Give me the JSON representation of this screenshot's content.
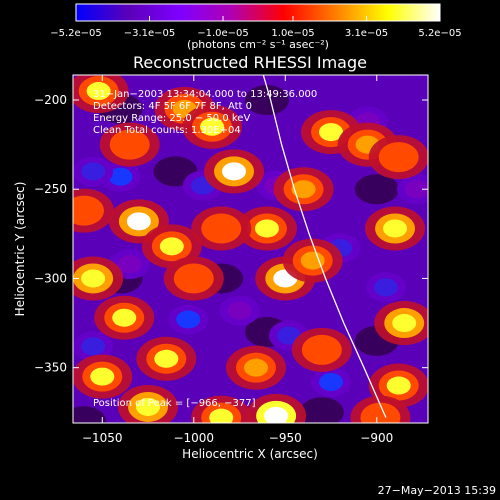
{
  "chart_data": {
    "type": "heatmap",
    "title": "Reconstructed RHESSI Image",
    "xlabel": "Heliocentric X (arcsec)",
    "ylabel": "Heliocentric Y (arcsec)",
    "xlim": [
      -1066,
      -872
    ],
    "ylim": [
      -381,
      -186
    ],
    "x_ticks": [
      -1050,
      -1000,
      -950,
      -900
    ],
    "x_tick_labels": [
      "−1050",
      "−1000",
      "−950",
      "−900"
    ],
    "y_ticks": [
      -350,
      -300,
      -250,
      -200
    ],
    "y_tick_labels": [
      "−350",
      "−300",
      "−250",
      "−200"
    ],
    "colorbar": {
      "range": [
        -5.2e-05,
        5.2e-05
      ],
      "tick_values": [
        -5.2e-05,
        -3.1e-05,
        -1e-05,
        1e-05,
        3.1e-05,
        5.2e-05
      ],
      "tick_labels": [
        "−5.2e−05",
        "−3.1e−05",
        "−1.0e−05",
        "1.0e−05",
        "3.1e−05",
        "5.2e−05"
      ],
      "unit_label": "(photons cm⁻² s⁻¹ asec⁻²)",
      "colors": [
        "#0000ff",
        "#5a00b8",
        "#7f00ff",
        "#b000b0",
        "#ff0000",
        "#ff7f00",
        "#ffff00",
        "#ffffff"
      ]
    },
    "annotations": [
      "31−Jan−2003 13:34:04.000 to 13:49:36.000",
      "Detectors: 4F 5F 6F 7F 8F, Att 0",
      "Energy Range: 25.0 − 50.0 keV",
      "Clean     Total counts: 1.30E+04"
    ],
    "peak_label": "Position of Peak = [−966, −377]",
    "peak": {
      "x": -966,
      "y": -377
    },
    "limb_points": [
      [
        -962,
        -186
      ],
      [
        -958,
        -200
      ],
      [
        -952,
        -225
      ],
      [
        -945,
        -250
      ],
      [
        -937,
        -275
      ],
      [
        -928,
        -300
      ],
      [
        -918,
        -325
      ],
      [
        -907,
        -350
      ],
      [
        -895,
        -378
      ]
    ],
    "hot_spots": [
      {
        "x": -1052,
        "y": -195,
        "v": 0.85
      },
      {
        "x": -1005,
        "y": -205,
        "v": 0.75
      },
      {
        "x": -990,
        "y": -215,
        "v": 0.8
      },
      {
        "x": -1035,
        "y": -225,
        "v": 0.55
      },
      {
        "x": -978,
        "y": -240,
        "v": 0.95
      },
      {
        "x": -925,
        "y": -218,
        "v": 0.8
      },
      {
        "x": -905,
        "y": -225,
        "v": 0.75
      },
      {
        "x": -888,
        "y": -232,
        "v": 0.55
      },
      {
        "x": -890,
        "y": -272,
        "v": 0.9
      },
      {
        "x": -940,
        "y": -250,
        "v": 0.7
      },
      {
        "x": -1060,
        "y": -262,
        "v": 0.6
      },
      {
        "x": -1030,
        "y": -268,
        "v": 0.95
      },
      {
        "x": -1012,
        "y": -282,
        "v": 0.8
      },
      {
        "x": -960,
        "y": -272,
        "v": 0.85
      },
      {
        "x": -985,
        "y": -272,
        "v": 0.55
      },
      {
        "x": -1055,
        "y": -300,
        "v": 0.9
      },
      {
        "x": -1038,
        "y": -322,
        "v": 0.85
      },
      {
        "x": -1000,
        "y": -300,
        "v": 0.55
      },
      {
        "x": -950,
        "y": -300,
        "v": 0.95
      },
      {
        "x": -935,
        "y": -290,
        "v": 0.7
      },
      {
        "x": -1050,
        "y": -355,
        "v": 0.8
      },
      {
        "x": -1015,
        "y": -345,
        "v": 0.85
      },
      {
        "x": -1025,
        "y": -372,
        "v": 0.9
      },
      {
        "x": -966,
        "y": -350,
        "v": 0.75
      },
      {
        "x": -955,
        "y": -377,
        "v": 1.0
      },
      {
        "x": -985,
        "y": -378,
        "v": 0.8
      },
      {
        "x": -930,
        "y": -340,
        "v": 0.5
      },
      {
        "x": -885,
        "y": -325,
        "v": 0.9
      },
      {
        "x": -888,
        "y": -360,
        "v": 0.85
      },
      {
        "x": -898,
        "y": -378,
        "v": 0.6
      }
    ],
    "cold_spots": [
      {
        "x": -1040,
        "y": -243,
        "v": -0.9
      },
      {
        "x": -905,
        "y": -212,
        "v": -0.6
      },
      {
        "x": -1055,
        "y": -240,
        "v": -0.7
      },
      {
        "x": -955,
        "y": -248,
        "v": -0.6
      },
      {
        "x": -995,
        "y": -248,
        "v": -0.7
      },
      {
        "x": -1003,
        "y": -323,
        "v": -0.95
      },
      {
        "x": -920,
        "y": -283,
        "v": -0.75
      },
      {
        "x": -895,
        "y": -305,
        "v": -0.8
      },
      {
        "x": -975,
        "y": -318,
        "v": -0.6
      },
      {
        "x": -948,
        "y": -332,
        "v": -0.8
      },
      {
        "x": -1055,
        "y": -338,
        "v": -0.7
      },
      {
        "x": -925,
        "y": -358,
        "v": -0.95
      },
      {
        "x": -1035,
        "y": -292,
        "v": -0.55
      },
      {
        "x": -878,
        "y": -250,
        "v": -0.5
      }
    ]
  },
  "footer": {
    "timestamp": "27−May−2013 15:39"
  }
}
